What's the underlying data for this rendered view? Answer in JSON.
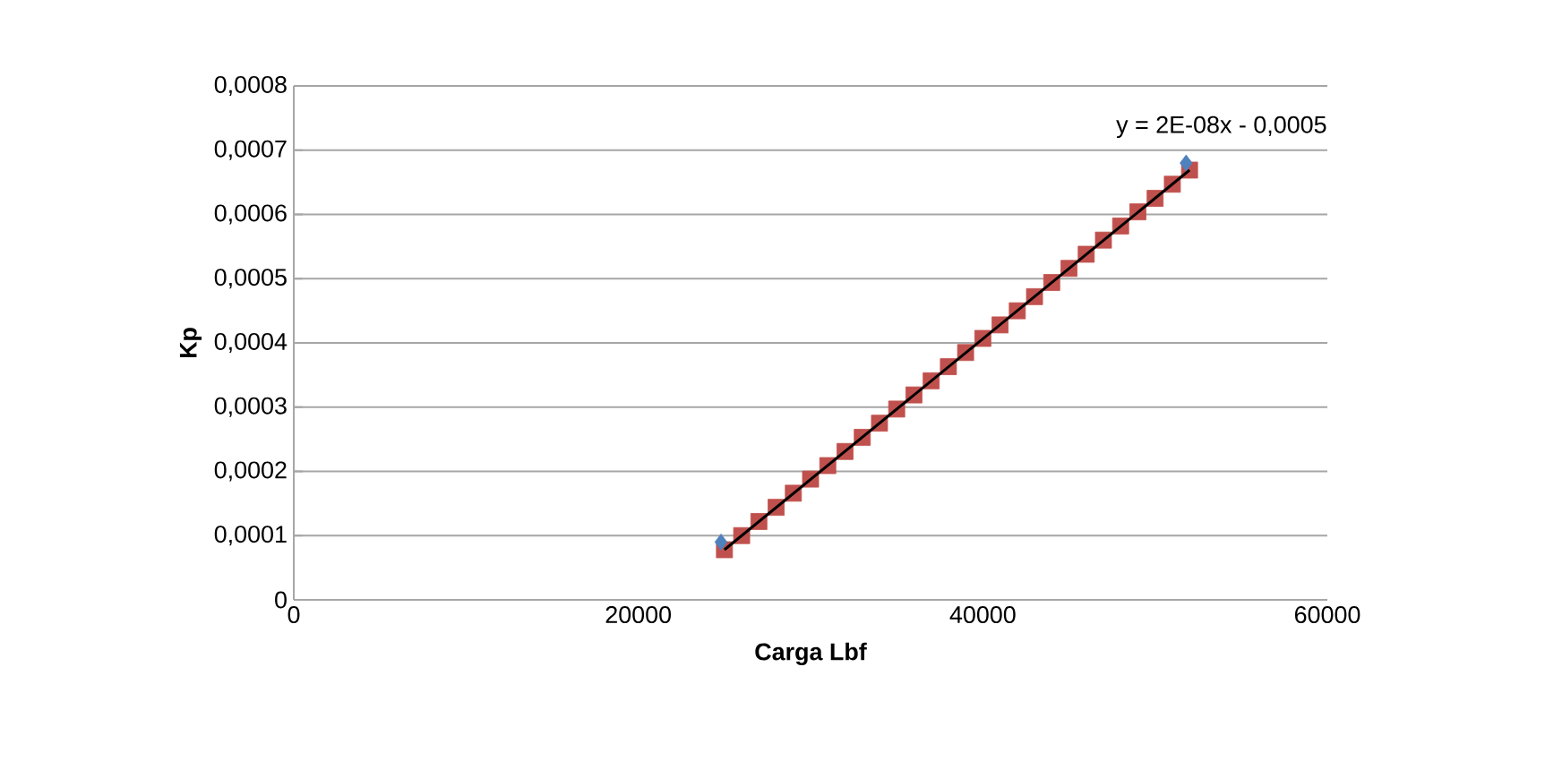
{
  "chart_data": {
    "type": "scatter",
    "xlabel": "Carga Lbf",
    "ylabel": "Kp",
    "xlim": [
      0,
      60000
    ],
    "xticks": [
      0,
      20000,
      40000,
      60000
    ],
    "ylim": [
      0,
      0.0008
    ],
    "yticks": [
      0,
      {
        "value": 0.0001,
        "label": "0,0001"
      },
      {
        "value": 0.0002,
        "label": "0,0002"
      },
      {
        "value": 0.0003,
        "label": "0,0003"
      },
      {
        "value": 0.0004,
        "label": "0,0004"
      },
      {
        "value": 0.0005,
        "label": "0,0005"
      },
      {
        "value": 0.0006,
        "label": "0,0006"
      },
      {
        "value": 0.0007,
        "label": "0,0007"
      },
      {
        "value": 0.0008,
        "label": "0,0008"
      }
    ],
    "grid": "y",
    "series": [
      {
        "marker": "square",
        "color": "#c0504d",
        "x": [
          25000,
          26000,
          27000,
          28000,
          29000,
          30000,
          31000,
          32000,
          33000,
          34000,
          35000,
          36000,
          37000,
          38000,
          39000,
          40000,
          41000,
          42000,
          43000,
          44000,
          45000,
          46000,
          47000,
          48000,
          49000,
          50000,
          51000,
          52000
        ],
        "values": [
          7.8e-05,
          0.0001,
          0.000122,
          0.000144,
          0.000166,
          0.000188,
          0.000209,
          0.000231,
          0.000253,
          0.000275,
          0.000297,
          0.000319,
          0.000341,
          0.000363,
          0.000385,
          0.000407,
          0.000428,
          0.00045,
          0.000472,
          0.000494,
          0.000516,
          0.000538,
          0.00056,
          0.000582,
          0.000604,
          0.000625,
          0.000647,
          0.000669
        ]
      },
      {
        "type": "line",
        "color": "#000000",
        "x": [
          25000,
          52000
        ],
        "values": [
          7.8e-05,
          0.000669
        ]
      },
      {
        "marker": "diamond",
        "color": "#4f81bd",
        "x": [
          24800,
          51800
        ],
        "values": [
          9e-05,
          0.00068
        ]
      }
    ],
    "annotations": [
      "y = 2E-08x - 0,0005"
    ]
  }
}
